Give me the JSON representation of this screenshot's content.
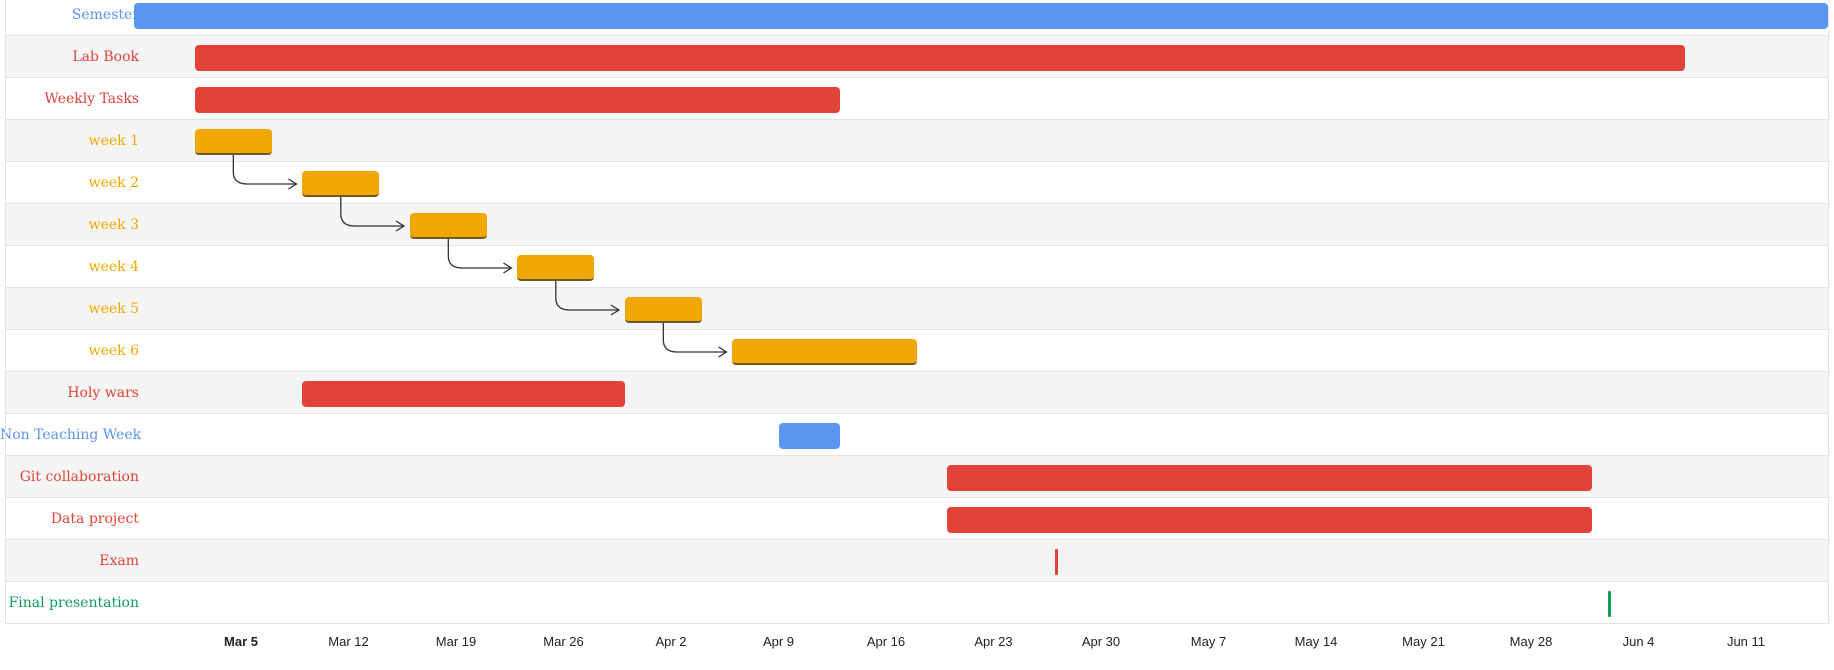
{
  "chart_data": {
    "type": "gantt",
    "x_axis": {
      "start": "2018-02-28",
      "end": "2018-06-18",
      "tick_labels": [
        "Mar 5",
        "Mar 12",
        "Mar 19",
        "Mar 26",
        "Apr 2",
        "Apr 9",
        "Apr 16",
        "Apr 23",
        "Apr 30",
        "May 7",
        "May 14",
        "May 21",
        "May 28",
        "Jun 4",
        "Jun 11"
      ],
      "tick_dates": [
        "2018-03-05",
        "2018-03-12",
        "2018-03-19",
        "2018-03-26",
        "2018-04-02",
        "2018-04-09",
        "2018-04-16",
        "2018-04-23",
        "2018-04-30",
        "2018-05-07",
        "2018-05-14",
        "2018-05-21",
        "2018-05-28",
        "2018-06-04",
        "2018-06-11"
      ],
      "bold_tick": "Mar 5"
    },
    "tasks": [
      {
        "label": "Semester",
        "start": "2018-02-26",
        "end": "2018-06-30",
        "color": "#5b95f2",
        "milestone": false
      },
      {
        "label": "Lab Book",
        "start": "2018-03-02",
        "end": "2018-06-07",
        "color": "#e04337",
        "milestone": false
      },
      {
        "label": "Weekly Tasks",
        "start": "2018-03-02",
        "end": "2018-04-13",
        "color": "#e04337",
        "milestone": false
      },
      {
        "label": "week 1",
        "start": "2018-03-02",
        "end": "2018-03-07",
        "color": "#f0a800",
        "milestone": false
      },
      {
        "label": "week 2",
        "start": "2018-03-09",
        "end": "2018-03-14",
        "color": "#f0a800",
        "milestone": false
      },
      {
        "label": "week 3",
        "start": "2018-03-16",
        "end": "2018-03-21",
        "color": "#f0a800",
        "milestone": false
      },
      {
        "label": "week 4",
        "start": "2018-03-23",
        "end": "2018-03-28",
        "color": "#f0a800",
        "milestone": false
      },
      {
        "label": "week 5",
        "start": "2018-03-30",
        "end": "2018-04-04",
        "color": "#f0a800",
        "milestone": false
      },
      {
        "label": "week 6",
        "start": "2018-04-06",
        "end": "2018-04-18",
        "color": "#f0a800",
        "milestone": false
      },
      {
        "label": "Holy wars",
        "start": "2018-03-09",
        "end": "2018-03-30",
        "color": "#e04337",
        "milestone": false
      },
      {
        "label": "Non Teaching Week",
        "start": "2018-04-09",
        "end": "2018-04-13",
        "color": "#5b95f2",
        "milestone": false
      },
      {
        "label": "Git collaboration",
        "start": "2018-04-20",
        "end": "2018-06-01",
        "color": "#e04337",
        "milestone": false
      },
      {
        "label": "Data project",
        "start": "2018-04-20",
        "end": "2018-06-01",
        "color": "#e04337",
        "milestone": false
      },
      {
        "label": "Exam",
        "start": "2018-04-27",
        "end": "2018-04-27",
        "color": "#e04337",
        "milestone": true
      },
      {
        "label": "Final presentation",
        "start": "2018-06-02",
        "end": "2018-06-02",
        "color": "#0f9d58",
        "milestone": true
      }
    ],
    "dependencies": [
      {
        "from": "week 1",
        "to": "week 2"
      },
      {
        "from": "week 2",
        "to": "week 3"
      },
      {
        "from": "week 3",
        "to": "week 4"
      },
      {
        "from": "week 4",
        "to": "week 5"
      },
      {
        "from": "week 5",
        "to": "week 6"
      }
    ],
    "grid": true
  }
}
